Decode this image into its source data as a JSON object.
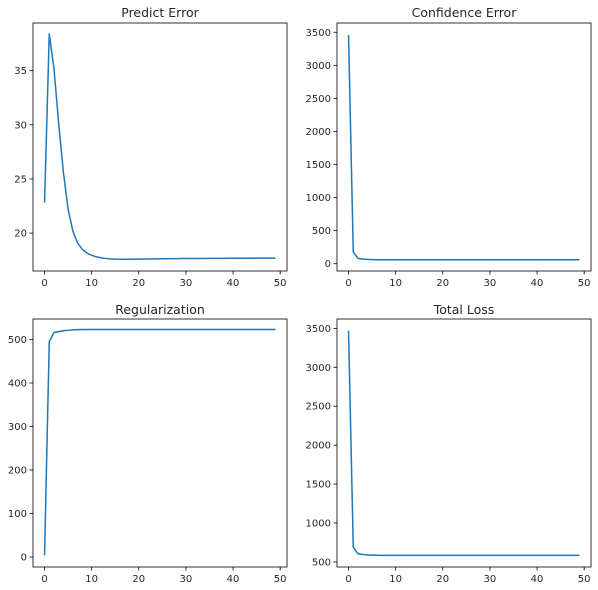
{
  "figure": {
    "line_color": "#1f77b4",
    "background": "#ffffff"
  },
  "chart_data": [
    {
      "type": "line",
      "title": "Predict Error",
      "xlabel": "",
      "ylabel": "",
      "xlim": [
        -2.45,
        51.45
      ],
      "ylim": [
        16.5,
        39.4
      ],
      "xticks": [
        0,
        10,
        20,
        30,
        40,
        50
      ],
      "yticks": [
        20,
        25,
        30,
        35
      ],
      "grid": false,
      "series": [
        {
          "x": [
            0,
            1,
            2,
            3,
            4,
            5,
            6,
            7,
            8,
            9,
            10,
            11,
            12,
            13,
            14,
            15,
            16,
            17,
            18,
            19,
            20,
            21,
            22,
            23,
            24,
            25,
            26,
            27,
            28,
            29,
            30,
            31,
            32,
            33,
            34,
            35,
            36,
            37,
            38,
            39,
            40,
            41,
            42,
            43,
            44,
            45,
            46,
            47,
            48,
            49
          ],
          "values": [
            22.8,
            38.4,
            35.2,
            30.1,
            25.6,
            22.2,
            20.2,
            19.1,
            18.5,
            18.15,
            17.95,
            17.8,
            17.72,
            17.66,
            17.62,
            17.6,
            17.59,
            17.59,
            17.59,
            17.6,
            17.6,
            17.61,
            17.61,
            17.62,
            17.62,
            17.63,
            17.63,
            17.64,
            17.64,
            17.65,
            17.65,
            17.65,
            17.66,
            17.66,
            17.66,
            17.67,
            17.67,
            17.67,
            17.67,
            17.68,
            17.68,
            17.68,
            17.68,
            17.68,
            17.68,
            17.69,
            17.69,
            17.69,
            17.69,
            17.69
          ]
        }
      ]
    },
    {
      "type": "line",
      "title": "Confidence Error",
      "xlabel": "",
      "ylabel": "",
      "xlim": [
        -2.45,
        51.45
      ],
      "ylim": [
        -110,
        3640
      ],
      "xticks": [
        0,
        10,
        20,
        30,
        40,
        50
      ],
      "yticks": [
        0,
        500,
        1000,
        1500,
        2000,
        2500,
        3000,
        3500
      ],
      "grid": false,
      "series": [
        {
          "x": [
            0,
            1,
            2,
            3,
            4,
            5,
            6,
            7,
            8,
            9,
            10,
            11,
            12,
            13,
            14,
            15,
            16,
            17,
            18,
            19,
            20,
            21,
            22,
            23,
            24,
            25,
            26,
            27,
            28,
            29,
            30,
            31,
            32,
            33,
            34,
            35,
            36,
            37,
            38,
            39,
            40,
            41,
            42,
            43,
            44,
            45,
            46,
            47,
            48,
            49
          ],
          "values": [
            3460,
            180,
            80,
            70,
            65,
            62,
            60,
            60,
            60,
            60,
            60,
            60,
            60,
            60,
            60,
            60,
            60,
            60,
            60,
            60,
            60,
            60,
            60,
            60,
            60,
            60,
            60,
            60,
            60,
            60,
            60,
            60,
            60,
            60,
            60,
            60,
            60,
            60,
            60,
            60,
            60,
            60,
            60,
            60,
            60,
            60,
            60,
            60,
            60,
            60
          ]
        }
      ]
    },
    {
      "type": "line",
      "title": "Regularization",
      "xlabel": "",
      "ylabel": "",
      "xlim": [
        -2.45,
        51.45
      ],
      "ylim": [
        -23,
        547
      ],
      "xticks": [
        0,
        10,
        20,
        30,
        40,
        50
      ],
      "yticks": [
        0,
        100,
        200,
        300,
        400,
        500
      ],
      "grid": false,
      "series": [
        {
          "x": [
            0,
            1,
            2,
            3,
            4,
            5,
            6,
            7,
            8,
            9,
            10,
            11,
            12,
            13,
            14,
            15,
            16,
            17,
            18,
            19,
            20,
            21,
            22,
            23,
            24,
            25,
            26,
            27,
            28,
            29,
            30,
            31,
            32,
            33,
            34,
            35,
            36,
            37,
            38,
            39,
            40,
            41,
            42,
            43,
            44,
            45,
            46,
            47,
            48,
            49
          ],
          "values": [
            4,
            495,
            516,
            518,
            520,
            521,
            522,
            522.5,
            523,
            523,
            523,
            523,
            523,
            523,
            523,
            523,
            523,
            523,
            523,
            523,
            523,
            523,
            523,
            523,
            523,
            523,
            523,
            523,
            523,
            523,
            523,
            523,
            523,
            523,
            523,
            523,
            523,
            523,
            523,
            523,
            523,
            523,
            523,
            523,
            523,
            523,
            523,
            523,
            523,
            523
          ]
        }
      ]
    },
    {
      "type": "line",
      "title": "Total Loss",
      "xlabel": "",
      "ylabel": "",
      "xlim": [
        -2.45,
        51.45
      ],
      "ylim": [
        435,
        3620
      ],
      "xticks": [
        0,
        10,
        20,
        30,
        40,
        50
      ],
      "yticks": [
        500,
        1000,
        1500,
        2000,
        2500,
        3000,
        3500
      ],
      "grid": false,
      "series": [
        {
          "x": [
            0,
            1,
            2,
            3,
            4,
            5,
            6,
            7,
            8,
            9,
            10,
            11,
            12,
            13,
            14,
            15,
            16,
            17,
            18,
            19,
            20,
            21,
            22,
            23,
            24,
            25,
            26,
            27,
            28,
            29,
            30,
            31,
            32,
            33,
            34,
            35,
            36,
            37,
            38,
            39,
            40,
            41,
            42,
            43,
            44,
            45,
            46,
            47,
            48,
            49
          ],
          "values": [
            3470,
            690,
            605,
            595,
            590,
            588,
            586,
            585,
            585,
            585,
            585,
            585,
            585,
            585,
            585,
            585,
            585,
            585,
            585,
            585,
            585,
            585,
            585,
            585,
            585,
            585,
            585,
            585,
            585,
            585,
            585,
            585,
            585,
            585,
            585,
            585,
            585,
            585,
            585,
            585,
            585,
            585,
            585,
            585,
            585,
            585,
            585,
            585,
            585,
            585
          ]
        }
      ]
    }
  ]
}
